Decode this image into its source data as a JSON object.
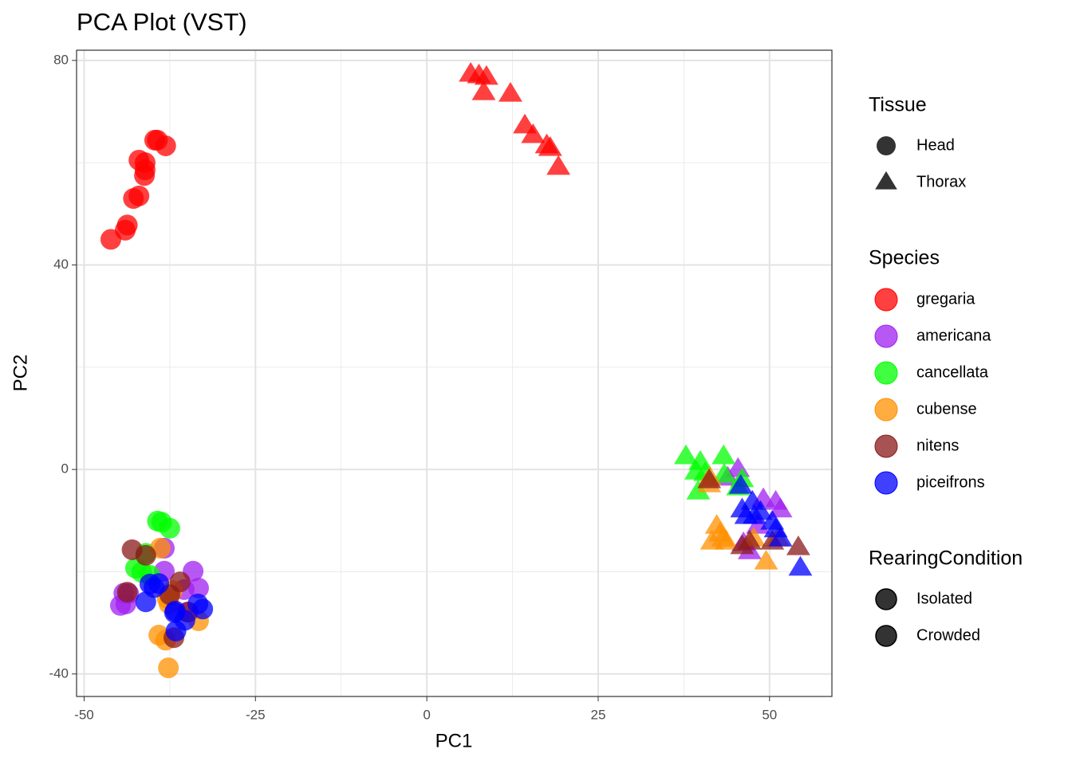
{
  "chart_data": {
    "type": "scatter",
    "title": "PCA Plot (VST)",
    "x_label": "PC1",
    "y_label": "PC2",
    "xlim": [
      -51.1,
      59.1
    ],
    "ylim": [
      -44.4,
      82.0
    ],
    "xticks": [
      -50,
      -25,
      0,
      25,
      50
    ],
    "yticks": [
      -40,
      0,
      40,
      80
    ],
    "xminor": [
      -37.5,
      -12.5,
      12.5,
      37.5
    ],
    "yminor": [
      -20,
      20,
      60
    ],
    "grid": true,
    "alpha": 0.75,
    "tissue_legend": {
      "title": "Tissue",
      "entries": [
        {
          "name": "Head",
          "shape": "circle"
        },
        {
          "name": "Thorax",
          "shape": "triangle"
        }
      ]
    },
    "species_legend_title": "Species",
    "rearing_legend": {
      "title": "RearingCondition",
      "entries": [
        "Isolated",
        "Crowded"
      ]
    },
    "series": [
      {
        "name": "gregaria",
        "color": "#ff0000",
        "values_by_tissue": [
          {
            "x": [
              -46.1,
              -44.0,
              -43.7,
              -42.8,
              -42.0,
              -42.0,
              -41.1,
              -41.2,
              -41.1,
              -39.7,
              -39.3,
              -38.1
            ],
            "y": [
              45.0,
              46.8,
              47.8,
              53.0,
              53.5,
              60.5,
              58.6,
              57.5,
              60.0,
              64.4,
              64.4,
              63.3
            ]
          },
          {
            "x": [
              6.4,
              7.6,
              8.7,
              8.3,
              12.2,
              14.3,
              15.5,
              17.5,
              18.0,
              19.2
            ],
            "y": [
              77.3,
              77.0,
              76.7,
              73.7,
              73.4,
              67.2,
              65.3,
              63.3,
              62.8,
              59.1
            ]
          }
        ]
      },
      {
        "name": "americana",
        "color": "#a020f0",
        "values_by_tissue": [
          {
            "x": [
              -44.7,
              -43.9,
              -43.5,
              -44.2,
              -38.3,
              -34.1,
              -33.3,
              -35.4,
              -38.3,
              -34.8
            ],
            "y": [
              -26.6,
              -26.3,
              -24.3,
              -24.2,
              -19.9,
              -19.9,
              -23.2,
              -23.5,
              -15.4,
              -27.9
            ]
          },
          {
            "x": [
              45.4,
              43.9,
              49.1,
              50.9,
              51.6,
              47.1,
              48.3,
              46.2
            ],
            "y": [
              0.0,
              -1.7,
              -5.9,
              -6.4,
              -7.9,
              -16.1,
              -11.1,
              -14.5
            ]
          }
        ]
      },
      {
        "name": "cancellata",
        "color": "#00ff00",
        "values_by_tissue": [
          {
            "x": [
              -39.3,
              -38.7,
              -37.5,
              -42.5,
              -41.6,
              -41.0,
              -40.4
            ],
            "y": [
              -10.1,
              -10.3,
              -11.5,
              -19.3,
              -20.1,
              -16.4,
              -20.7
            ]
          },
          {
            "x": [
              37.8,
              39.9,
              43.3,
              39.3,
              40.6,
              46.0,
              45.4,
              39.6,
              43.4
            ],
            "y": [
              2.5,
              1.4,
              2.5,
              -0.5,
              -0.8,
              -2.0,
              -3.6,
              -4.4,
              -1.1
            ]
          }
        ]
      },
      {
        "name": "cubense",
        "color": "#ff9000",
        "values_by_tissue": [
          {
            "x": [
              -38.9,
              -37.9,
              -39.1,
              -38.1,
              -37.7,
              -33.3,
              -37.1,
              -37.6
            ],
            "y": [
              -15.4,
              -25.2,
              -32.4,
              -33.4,
              -38.8,
              -29.6,
              -23.7,
              -26.3
            ]
          },
          {
            "x": [
              42.3,
              42.8,
              43.7,
              41.6,
              43.2,
              49.5,
              47.7,
              51.2,
              41.3,
              41.2
            ],
            "y": [
              -11.1,
              -12.6,
              -14.2,
              -14.2,
              -13.6,
              -18.1,
              -13.6,
              -13.6,
              -1.7,
              -3.0
            ]
          }
        ]
      },
      {
        "name": "nitens",
        "color": "#8b1a1a",
        "values_by_tissue": [
          {
            "x": [
              -43.0,
              -41.0,
              -36.0,
              -37.5,
              -43.7,
              -36.9,
              -34.9
            ],
            "y": [
              -15.7,
              -16.8,
              -22.0,
              -24.5,
              -24.0,
              -32.9,
              -27.9
            ]
          },
          {
            "x": [
              41.2,
              54.2,
              46.0,
              47.1,
              50.4
            ],
            "y": [
              -2.2,
              -15.3,
              -15.1,
              -14.2,
              -14.2
            ]
          }
        ]
      },
      {
        "name": "piceifrons",
        "color": "#0000ff",
        "values_by_tissue": [
          {
            "x": [
              -39.8,
              -40.4,
              -39.1,
              -41.0,
              -36.7,
              -36.6,
              -35.3,
              -33.4,
              -32.7,
              -36.8
            ],
            "y": [
              -23.1,
              -22.4,
              -22.3,
              -25.9,
              -27.7,
              -31.6,
              -29.5,
              -26.3,
              -27.3,
              -28.0
            ]
          },
          {
            "x": [
              45.8,
              46.0,
              46.6,
              47.8,
              48.7,
              50.4,
              50.9,
              51.6,
              54.5,
              47.5
            ],
            "y": [
              -3.3,
              -7.9,
              -9.2,
              -9.2,
              -8.4,
              -10.3,
              -11.8,
              -13.6,
              -19.3,
              -6.4
            ]
          }
        ]
      }
    ]
  }
}
